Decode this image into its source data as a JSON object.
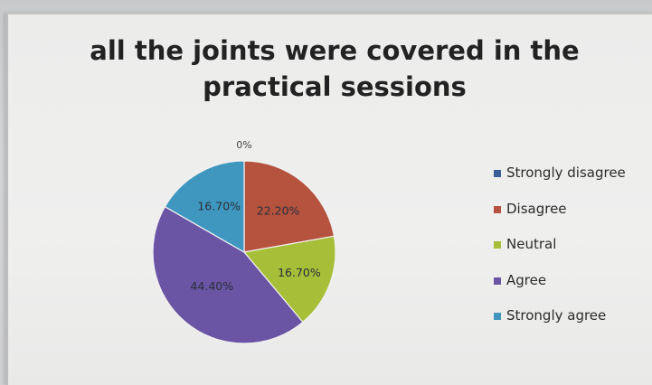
{
  "chart_data": {
    "type": "pie",
    "title_lines": [
      "all the joints were covered in the",
      "practical sessions"
    ],
    "categories": [
      "Strongly disagree",
      "Disagree",
      "Neutral",
      "Agree",
      "Strongly agree"
    ],
    "values": [
      0,
      22.2,
      16.7,
      44.4,
      16.7
    ],
    "data_labels": [
      "0%",
      "22.20%",
      "16.70%",
      "44.40%",
      "16.70%"
    ],
    "colors": [
      "#3a5f96",
      "#b5533f",
      "#a6be38",
      "#6a55a5",
      "#3f97bf"
    ],
    "legend_position": "right"
  }
}
